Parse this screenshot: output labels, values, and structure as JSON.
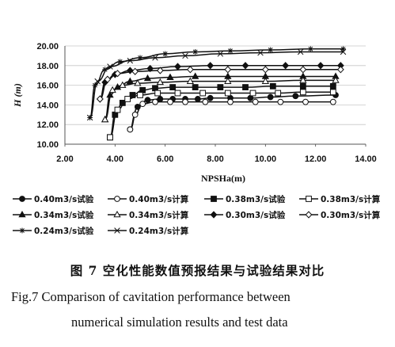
{
  "chart_data": {
    "type": "line",
    "xlabel": "NPSHa(m)",
    "ylabel": "H (m)",
    "xlim": [
      2,
      14
    ],
    "ylim": [
      10,
      20
    ],
    "x_ticks": [
      "2.00",
      "4.00",
      "6.00",
      "8.00",
      "10.00",
      "12.00",
      "14.00"
    ],
    "y_ticks": [
      "10.00",
      "12.00",
      "14.00",
      "16.00",
      "18.00",
      "20.00"
    ],
    "legend_position": "bottom",
    "series": [
      {
        "name": "0.40m3/s试验",
        "marker": "circle-filled",
        "x": [
          4.6,
          4.9,
          5.3,
          5.8,
          6.3,
          6.8,
          7.3,
          7.8,
          8.6,
          9.4,
          10.2,
          11.2,
          12.8
        ],
        "y": [
          11.5,
          13.8,
          14.5,
          14.6,
          14.6,
          14.6,
          14.6,
          14.7,
          14.7,
          14.7,
          14.8,
          14.9,
          15.0
        ]
      },
      {
        "name": "0.40m3/s计算",
        "marker": "circle-open",
        "x": [
          4.6,
          4.8,
          5.1,
          5.6,
          6.2,
          6.8,
          7.6,
          8.6,
          9.6,
          10.6,
          11.6,
          12.7
        ],
        "y": [
          11.5,
          13.0,
          14.1,
          14.3,
          14.3,
          14.3,
          14.3,
          14.3,
          14.3,
          14.3,
          14.3,
          14.3
        ]
      },
      {
        "name": "0.38m3/s试验",
        "marker": "square-filled",
        "x": [
          3.8,
          4.0,
          4.3,
          4.7,
          5.1,
          5.6,
          6.3,
          7.2,
          8.2,
          9.2,
          10.3,
          11.5,
          12.7
        ],
        "y": [
          10.7,
          13.0,
          14.2,
          15.0,
          15.5,
          15.7,
          15.8,
          15.8,
          15.8,
          15.8,
          15.9,
          15.9,
          15.9
        ]
      },
      {
        "name": "0.38m3/s计算",
        "marker": "square-open",
        "x": [
          3.8,
          4.1,
          4.5,
          5.0,
          5.7,
          6.5,
          7.5,
          8.5,
          9.5,
          10.5,
          11.5,
          12.7
        ],
        "y": [
          10.7,
          13.5,
          14.6,
          15.0,
          15.2,
          15.2,
          15.2,
          15.2,
          15.2,
          15.2,
          15.3,
          15.3
        ]
      },
      {
        "name": "0.34m3/s试验",
        "marker": "triangle-filled",
        "x": [
          3.6,
          3.8,
          4.1,
          4.6,
          5.3,
          6.2,
          7.2,
          8.5,
          10.0,
          11.5,
          12.8
        ],
        "y": [
          12.5,
          15.0,
          15.8,
          16.4,
          16.7,
          16.8,
          16.9,
          16.9,
          16.9,
          16.9,
          16.9
        ]
      },
      {
        "name": "0.34m3/s计算",
        "marker": "triangle-open",
        "x": [
          3.6,
          3.9,
          4.3,
          4.9,
          5.8,
          7.0,
          8.5,
          10.0,
          11.5,
          12.8
        ],
        "y": [
          12.5,
          15.5,
          16.0,
          16.2,
          16.3,
          16.4,
          16.4,
          16.4,
          16.5,
          16.5
        ]
      },
      {
        "name": "0.30m3/s试验",
        "marker": "diamond-filled",
        "x": [
          3.4,
          3.6,
          4.0,
          4.6,
          5.4,
          6.5,
          7.8,
          9.2,
          10.8,
          12.2,
          13.0
        ],
        "y": [
          14.6,
          16.3,
          17.1,
          17.5,
          17.7,
          17.9,
          18.0,
          18.0,
          18.0,
          18.0,
          18.0
        ]
      },
      {
        "name": "0.30m3/s计算",
        "marker": "diamond-open",
        "x": [
          3.4,
          3.7,
          4.1,
          4.8,
          5.8,
          7.0,
          8.5,
          10.0,
          11.5,
          13.0
        ],
        "y": [
          14.6,
          16.6,
          17.2,
          17.4,
          17.5,
          17.6,
          17.6,
          17.6,
          17.6,
          17.6
        ]
      },
      {
        "name": "0.24m3/s试验",
        "marker": "star",
        "x": [
          3.0,
          3.2,
          3.6,
          4.2,
          5.0,
          6.0,
          7.2,
          8.6,
          10.2,
          11.8,
          13.1
        ],
        "y": [
          12.7,
          16.0,
          17.6,
          18.4,
          18.8,
          19.2,
          19.4,
          19.5,
          19.6,
          19.7,
          19.7
        ]
      },
      {
        "name": "0.24m3/s计算",
        "marker": "cross",
        "x": [
          3.0,
          3.3,
          3.8,
          4.6,
          5.6,
          6.8,
          8.2,
          9.8,
          11.4,
          13.1
        ],
        "y": [
          12.7,
          16.4,
          17.9,
          18.5,
          18.8,
          19.0,
          19.2,
          19.3,
          19.4,
          19.4
        ]
      }
    ]
  },
  "caption": {
    "zh": "图 7   空化性能数值预报结果与试验结果对比",
    "en_line1": "Fig.7  Comparison of cavitation performance between",
    "en_line2": "numerical simulation results and test data"
  }
}
